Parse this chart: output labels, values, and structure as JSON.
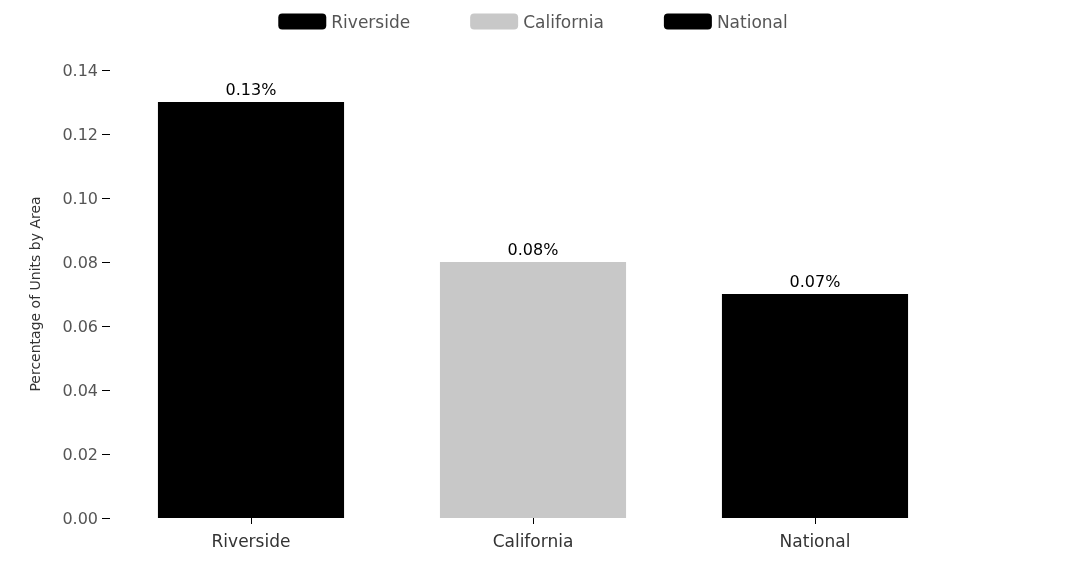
{
  "chart_data": {
    "type": "bar",
    "ylabel": "Percentage of Units by Area",
    "categories": [
      "Riverside",
      "California",
      "National"
    ],
    "series": [
      {
        "name": "Riverside",
        "color": "#000000",
        "values": [
          0.13,
          null,
          null
        ],
        "value_labels": [
          "0.13%",
          null,
          null
        ]
      },
      {
        "name": "California",
        "color": "#c8c8c8",
        "values": [
          null,
          0.08,
          null
        ],
        "value_labels": [
          null,
          "0.08%",
          null
        ]
      },
      {
        "name": "National",
        "color": "#000000",
        "values": [
          null,
          null,
          0.07
        ],
        "value_labels": [
          null,
          null,
          "0.07%"
        ]
      }
    ],
    "ylim": [
      0,
      0.14
    ],
    "yticks": [
      {
        "value": 0,
        "label": "0.00"
      },
      {
        "value": 0.02,
        "label": "0.02"
      },
      {
        "value": 0.04,
        "label": "0.04"
      },
      {
        "value": 0.06,
        "label": "0.06"
      },
      {
        "value": 0.08,
        "label": "0.08"
      },
      {
        "value": 0.1,
        "label": "0.10"
      },
      {
        "value": 0.12,
        "label": "0.12"
      },
      {
        "value": 0.14,
        "label": "0.14"
      }
    ],
    "grid": false,
    "legend": "top"
  }
}
